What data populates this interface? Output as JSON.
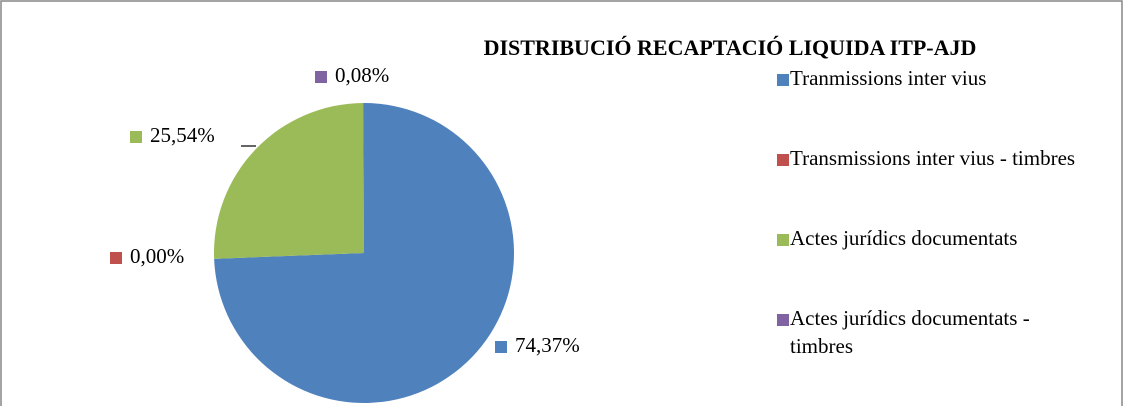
{
  "chart_data": {
    "type": "pie",
    "title": "DISTRIBUCIÓ RECAPTACIÓ LIQUIDA  ITP-AJD",
    "categories": [
      "Tranmissions inter vius",
      "Transmissions inter vius - timbres",
      "Actes jurídics documentats",
      "Actes jurídics documentats - timbres"
    ],
    "values": [
      74.37,
      0.0,
      25.54,
      0.08
    ],
    "value_labels": [
      "74,37%",
      "0,00%",
      "25,54%",
      "0,08%"
    ],
    "colors": [
      "#4f81bd",
      "#c0504d",
      "#9bbb59",
      "#8064a2"
    ],
    "legend": "right"
  }
}
